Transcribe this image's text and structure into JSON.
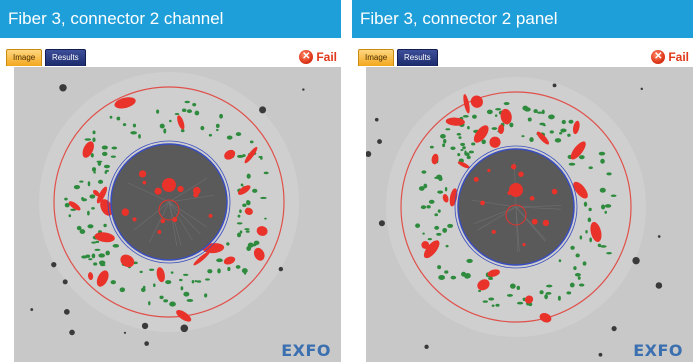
{
  "panels": [
    {
      "header": "Fiber 3, connector 2 channel",
      "tabs": {
        "image": "Image",
        "results": "Results"
      },
      "status": {
        "icon": "x-circle-icon",
        "label": "Fail",
        "color": "#e0381a"
      },
      "brand": "EXFO"
    },
    {
      "header": "Fiber 3, connector 2 panel",
      "tabs": {
        "image": "Image",
        "results": "Results"
      },
      "status": {
        "icon": "x-circle-icon",
        "label": "Fail",
        "color": "#e0381a"
      },
      "brand": "EXFO"
    }
  ],
  "colors": {
    "header_bg": "#1f9fd9",
    "defect_red": "#e8322a",
    "defect_green": "#2e8b3e",
    "zone_blue": "#3a4dc0",
    "zone_red": "#e0504a",
    "fiber_core": "#5a5a5a"
  }
}
